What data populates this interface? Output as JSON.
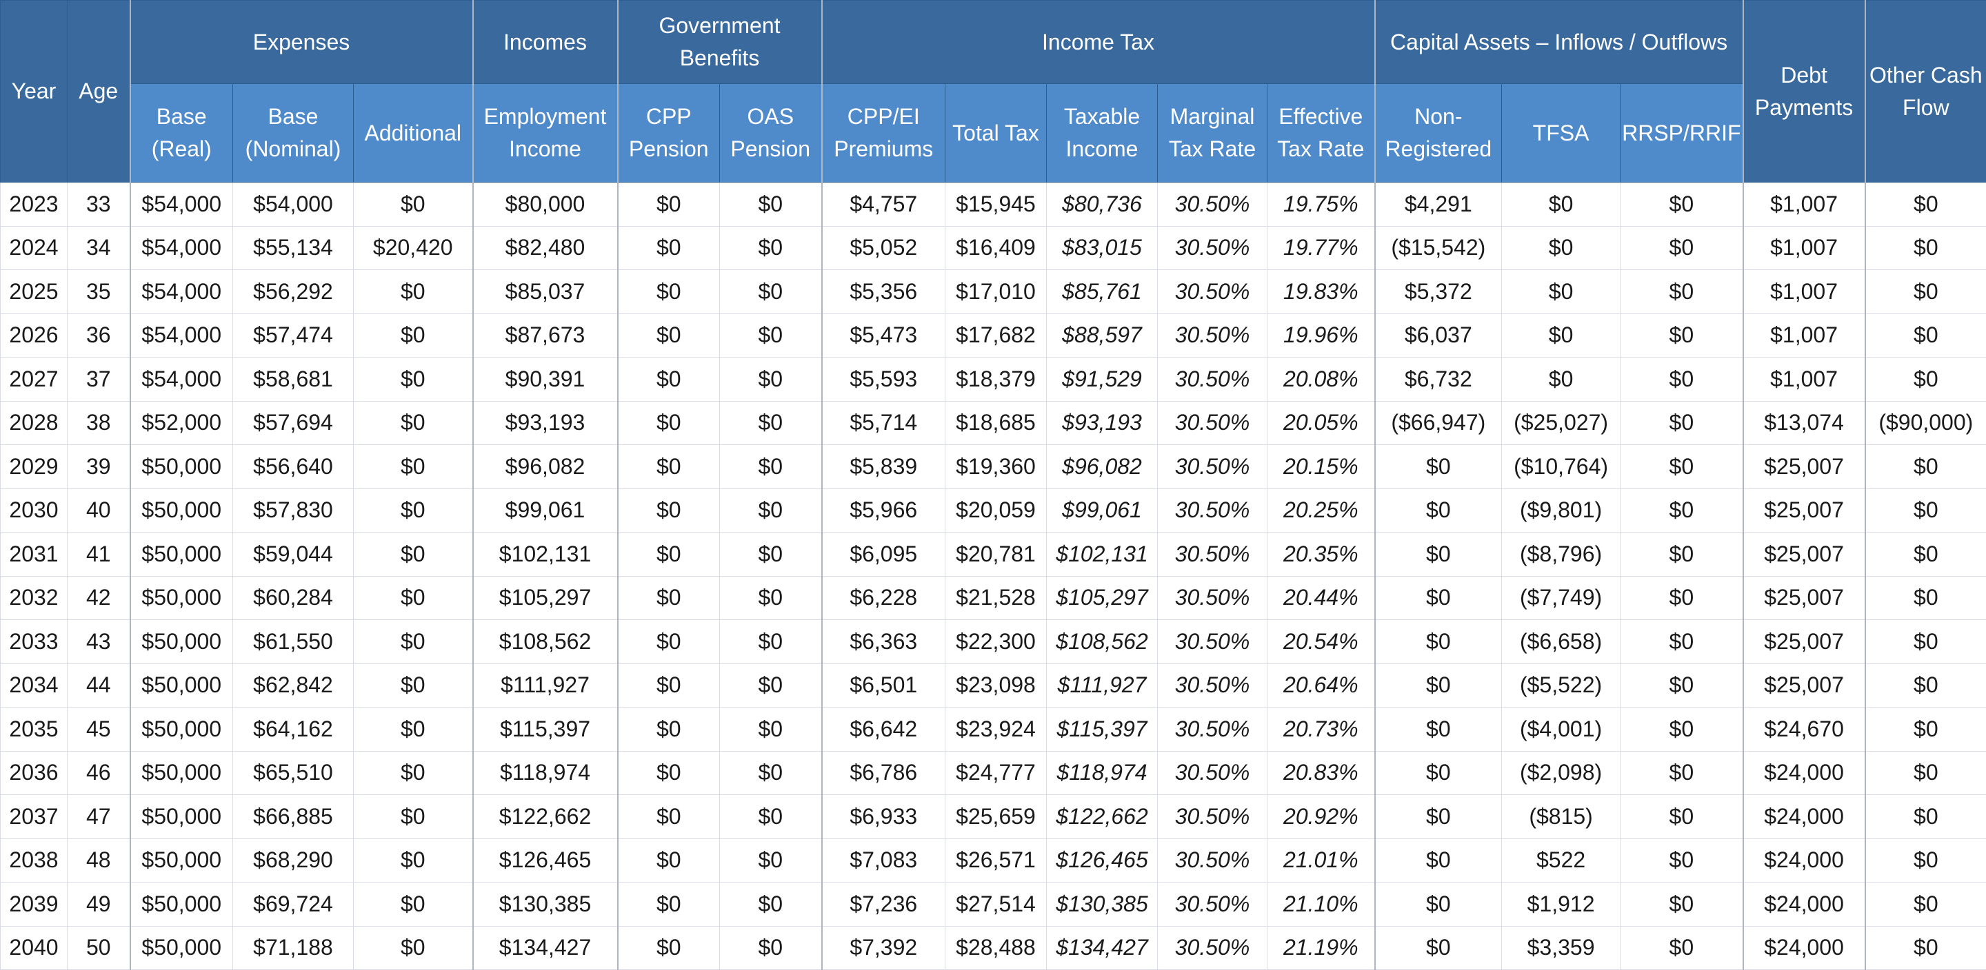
{
  "header": {
    "groups": {
      "expenses": "Expenses",
      "incomes": "Incomes",
      "government_benefits": "Government Benefits",
      "income_tax": "Income Tax",
      "capital_assets": "Capital Assets – Inflows / Outflows"
    },
    "columns": {
      "year": "Year",
      "age": "Age",
      "base_real": "Base (Real)",
      "base_nominal": "Base (Nominal)",
      "additional": "Additional",
      "employment_income": "Employment Income",
      "cpp_pension": "CPP Pension",
      "oas_pension": "OAS Pension",
      "cpp_ei_premiums": "CPP/EI Premiums",
      "total_tax": "Total Tax",
      "taxable_income": "Taxable Income",
      "marginal_tax_rate": "Marginal Tax Rate",
      "effective_tax_rate": "Effective Tax Rate",
      "non_registered": "Non-Registered",
      "tfsa": "TFSA",
      "rrsp_rrif": "RRSP/RRIF",
      "debt_payments": "Debt Payments",
      "other_cash_flow": "Other Cash Flow"
    }
  },
  "rows": [
    {
      "year": "2023",
      "age": "33",
      "base_real": "$54,000",
      "base_nominal": "$54,000",
      "additional": "$0",
      "employment_income": "$80,000",
      "cpp_pension": "$0",
      "oas_pension": "$0",
      "cpp_ei_premiums": "$4,757",
      "total_tax": "$15,945",
      "taxable_income": "$80,736",
      "marginal_tax_rate": "30.50%",
      "effective_tax_rate": "19.75%",
      "non_registered": "$4,291",
      "tfsa": "$0",
      "rrsp_rrif": "$0",
      "debt_payments": "$1,007",
      "other_cash_flow": "$0"
    },
    {
      "year": "2024",
      "age": "34",
      "base_real": "$54,000",
      "base_nominal": "$55,134",
      "additional": "$20,420",
      "employment_income": "$82,480",
      "cpp_pension": "$0",
      "oas_pension": "$0",
      "cpp_ei_premiums": "$5,052",
      "total_tax": "$16,409",
      "taxable_income": "$83,015",
      "marginal_tax_rate": "30.50%",
      "effective_tax_rate": "19.77%",
      "non_registered": "($15,542)",
      "tfsa": "$0",
      "rrsp_rrif": "$0",
      "debt_payments": "$1,007",
      "other_cash_flow": "$0"
    },
    {
      "year": "2025",
      "age": "35",
      "base_real": "$54,000",
      "base_nominal": "$56,292",
      "additional": "$0",
      "employment_income": "$85,037",
      "cpp_pension": "$0",
      "oas_pension": "$0",
      "cpp_ei_premiums": "$5,356",
      "total_tax": "$17,010",
      "taxable_income": "$85,761",
      "marginal_tax_rate": "30.50%",
      "effective_tax_rate": "19.83%",
      "non_registered": "$5,372",
      "tfsa": "$0",
      "rrsp_rrif": "$0",
      "debt_payments": "$1,007",
      "other_cash_flow": "$0"
    },
    {
      "year": "2026",
      "age": "36",
      "base_real": "$54,000",
      "base_nominal": "$57,474",
      "additional": "$0",
      "employment_income": "$87,673",
      "cpp_pension": "$0",
      "oas_pension": "$0",
      "cpp_ei_premiums": "$5,473",
      "total_tax": "$17,682",
      "taxable_income": "$88,597",
      "marginal_tax_rate": "30.50%",
      "effective_tax_rate": "19.96%",
      "non_registered": "$6,037",
      "tfsa": "$0",
      "rrsp_rrif": "$0",
      "debt_payments": "$1,007",
      "other_cash_flow": "$0"
    },
    {
      "year": "2027",
      "age": "37",
      "base_real": "$54,000",
      "base_nominal": "$58,681",
      "additional": "$0",
      "employment_income": "$90,391",
      "cpp_pension": "$0",
      "oas_pension": "$0",
      "cpp_ei_premiums": "$5,593",
      "total_tax": "$18,379",
      "taxable_income": "$91,529",
      "marginal_tax_rate": "30.50%",
      "effective_tax_rate": "20.08%",
      "non_registered": "$6,732",
      "tfsa": "$0",
      "rrsp_rrif": "$0",
      "debt_payments": "$1,007",
      "other_cash_flow": "$0"
    },
    {
      "year": "2028",
      "age": "38",
      "base_real": "$52,000",
      "base_nominal": "$57,694",
      "additional": "$0",
      "employment_income": "$93,193",
      "cpp_pension": "$0",
      "oas_pension": "$0",
      "cpp_ei_premiums": "$5,714",
      "total_tax": "$18,685",
      "taxable_income": "$93,193",
      "marginal_tax_rate": "30.50%",
      "effective_tax_rate": "20.05%",
      "non_registered": "($66,947)",
      "tfsa": "($25,027)",
      "rrsp_rrif": "$0",
      "debt_payments": "$13,074",
      "other_cash_flow": "($90,000)"
    },
    {
      "year": "2029",
      "age": "39",
      "base_real": "$50,000",
      "base_nominal": "$56,640",
      "additional": "$0",
      "employment_income": "$96,082",
      "cpp_pension": "$0",
      "oas_pension": "$0",
      "cpp_ei_premiums": "$5,839",
      "total_tax": "$19,360",
      "taxable_income": "$96,082",
      "marginal_tax_rate": "30.50%",
      "effective_tax_rate": "20.15%",
      "non_registered": "$0",
      "tfsa": "($10,764)",
      "rrsp_rrif": "$0",
      "debt_payments": "$25,007",
      "other_cash_flow": "$0"
    },
    {
      "year": "2030",
      "age": "40",
      "base_real": "$50,000",
      "base_nominal": "$57,830",
      "additional": "$0",
      "employment_income": "$99,061",
      "cpp_pension": "$0",
      "oas_pension": "$0",
      "cpp_ei_premiums": "$5,966",
      "total_tax": "$20,059",
      "taxable_income": "$99,061",
      "marginal_tax_rate": "30.50%",
      "effective_tax_rate": "20.25%",
      "non_registered": "$0",
      "tfsa": "($9,801)",
      "rrsp_rrif": "$0",
      "debt_payments": "$25,007",
      "other_cash_flow": "$0"
    },
    {
      "year": "2031",
      "age": "41",
      "base_real": "$50,000",
      "base_nominal": "$59,044",
      "additional": "$0",
      "employment_income": "$102,131",
      "cpp_pension": "$0",
      "oas_pension": "$0",
      "cpp_ei_premiums": "$6,095",
      "total_tax": "$20,781",
      "taxable_income": "$102,131",
      "marginal_tax_rate": "30.50%",
      "effective_tax_rate": "20.35%",
      "non_registered": "$0",
      "tfsa": "($8,796)",
      "rrsp_rrif": "$0",
      "debt_payments": "$25,007",
      "other_cash_flow": "$0"
    },
    {
      "year": "2032",
      "age": "42",
      "base_real": "$50,000",
      "base_nominal": "$60,284",
      "additional": "$0",
      "employment_income": "$105,297",
      "cpp_pension": "$0",
      "oas_pension": "$0",
      "cpp_ei_premiums": "$6,228",
      "total_tax": "$21,528",
      "taxable_income": "$105,297",
      "marginal_tax_rate": "30.50%",
      "effective_tax_rate": "20.44%",
      "non_registered": "$0",
      "tfsa": "($7,749)",
      "rrsp_rrif": "$0",
      "debt_payments": "$25,007",
      "other_cash_flow": "$0"
    },
    {
      "year": "2033",
      "age": "43",
      "base_real": "$50,000",
      "base_nominal": "$61,550",
      "additional": "$0",
      "employment_income": "$108,562",
      "cpp_pension": "$0",
      "oas_pension": "$0",
      "cpp_ei_premiums": "$6,363",
      "total_tax": "$22,300",
      "taxable_income": "$108,562",
      "marginal_tax_rate": "30.50%",
      "effective_tax_rate": "20.54%",
      "non_registered": "$0",
      "tfsa": "($6,658)",
      "rrsp_rrif": "$0",
      "debt_payments": "$25,007",
      "other_cash_flow": "$0"
    },
    {
      "year": "2034",
      "age": "44",
      "base_real": "$50,000",
      "base_nominal": "$62,842",
      "additional": "$0",
      "employment_income": "$111,927",
      "cpp_pension": "$0",
      "oas_pension": "$0",
      "cpp_ei_premiums": "$6,501",
      "total_tax": "$23,098",
      "taxable_income": "$111,927",
      "marginal_tax_rate": "30.50%",
      "effective_tax_rate": "20.64%",
      "non_registered": "$0",
      "tfsa": "($5,522)",
      "rrsp_rrif": "$0",
      "debt_payments": "$25,007",
      "other_cash_flow": "$0"
    },
    {
      "year": "2035",
      "age": "45",
      "base_real": "$50,000",
      "base_nominal": "$64,162",
      "additional": "$0",
      "employment_income": "$115,397",
      "cpp_pension": "$0",
      "oas_pension": "$0",
      "cpp_ei_premiums": "$6,642",
      "total_tax": "$23,924",
      "taxable_income": "$115,397",
      "marginal_tax_rate": "30.50%",
      "effective_tax_rate": "20.73%",
      "non_registered": "$0",
      "tfsa": "($4,001)",
      "rrsp_rrif": "$0",
      "debt_payments": "$24,670",
      "other_cash_flow": "$0"
    },
    {
      "year": "2036",
      "age": "46",
      "base_real": "$50,000",
      "base_nominal": "$65,510",
      "additional": "$0",
      "employment_income": "$118,974",
      "cpp_pension": "$0",
      "oas_pension": "$0",
      "cpp_ei_premiums": "$6,786",
      "total_tax": "$24,777",
      "taxable_income": "$118,974",
      "marginal_tax_rate": "30.50%",
      "effective_tax_rate": "20.83%",
      "non_registered": "$0",
      "tfsa": "($2,098)",
      "rrsp_rrif": "$0",
      "debt_payments": "$24,000",
      "other_cash_flow": "$0"
    },
    {
      "year": "2037",
      "age": "47",
      "base_real": "$50,000",
      "base_nominal": "$66,885",
      "additional": "$0",
      "employment_income": "$122,662",
      "cpp_pension": "$0",
      "oas_pension": "$0",
      "cpp_ei_premiums": "$6,933",
      "total_tax": "$25,659",
      "taxable_income": "$122,662",
      "marginal_tax_rate": "30.50%",
      "effective_tax_rate": "20.92%",
      "non_registered": "$0",
      "tfsa": "($815)",
      "rrsp_rrif": "$0",
      "debt_payments": "$24,000",
      "other_cash_flow": "$0"
    },
    {
      "year": "2038",
      "age": "48",
      "base_real": "$50,000",
      "base_nominal": "$68,290",
      "additional": "$0",
      "employment_income": "$126,465",
      "cpp_pension": "$0",
      "oas_pension": "$0",
      "cpp_ei_premiums": "$7,083",
      "total_tax": "$26,571",
      "taxable_income": "$126,465",
      "marginal_tax_rate": "30.50%",
      "effective_tax_rate": "21.01%",
      "non_registered": "$0",
      "tfsa": "$522",
      "rrsp_rrif": "$0",
      "debt_payments": "$24,000",
      "other_cash_flow": "$0"
    },
    {
      "year": "2039",
      "age": "49",
      "base_real": "$50,000",
      "base_nominal": "$69,724",
      "additional": "$0",
      "employment_income": "$130,385",
      "cpp_pension": "$0",
      "oas_pension": "$0",
      "cpp_ei_premiums": "$7,236",
      "total_tax": "$27,514",
      "taxable_income": "$130,385",
      "marginal_tax_rate": "30.50%",
      "effective_tax_rate": "21.10%",
      "non_registered": "$0",
      "tfsa": "$1,912",
      "rrsp_rrif": "$0",
      "debt_payments": "$24,000",
      "other_cash_flow": "$0"
    },
    {
      "year": "2040",
      "age": "50",
      "base_real": "$50,000",
      "base_nominal": "$71,188",
      "additional": "$0",
      "employment_income": "$134,427",
      "cpp_pension": "$0",
      "oas_pension": "$0",
      "cpp_ei_premiums": "$7,392",
      "total_tax": "$28,488",
      "taxable_income": "$134,427",
      "marginal_tax_rate": "30.50%",
      "effective_tax_rate": "21.19%",
      "non_registered": "$0",
      "tfsa": "$3,359",
      "rrsp_rrif": "$0",
      "debt_payments": "$24,000",
      "other_cash_flow": "$0"
    }
  ],
  "colors": {
    "header_dark": "#3a6a9d",
    "header_light": "#4f8acb",
    "negative_text": "#8a3fb3",
    "muted_text": "#8a8f96"
  }
}
